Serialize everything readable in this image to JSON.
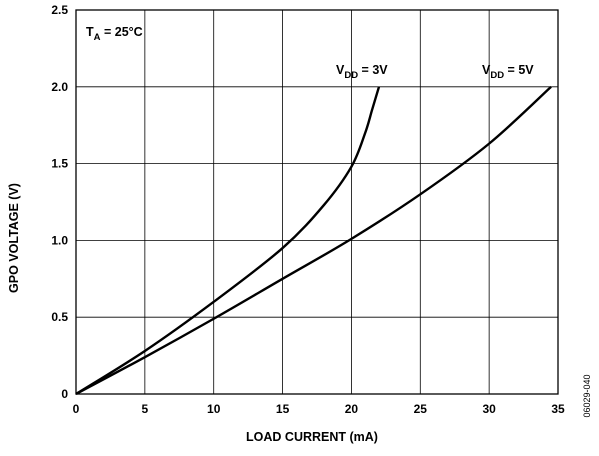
{
  "chart_data": {
    "type": "line",
    "xlabel": "LOAD CURRENT (mA)",
    "ylabel": "GPO VOLTAGE (V)",
    "xlim": [
      0,
      35
    ],
    "ylim": [
      0,
      2.5
    ],
    "xticks": [
      0,
      5,
      10,
      15,
      20,
      25,
      30,
      35
    ],
    "xtick_labels": [
      "0",
      "5",
      "10",
      "15",
      "20",
      "25",
      "30",
      "35"
    ],
    "yticks": [
      0,
      0.5,
      1.0,
      1.5,
      2.0,
      2.5
    ],
    "ytick_labels": [
      "0",
      "0.5",
      "1.0",
      "1.5",
      "2.0",
      "2.5"
    ],
    "grid": true,
    "series": [
      {
        "name": "VDD = 3V",
        "label_main": "V",
        "label_sub": "DD",
        "label_rest": " = 3V",
        "x": [
          0,
          5,
          10,
          15,
          18,
          20,
          21,
          21.5,
          22
        ],
        "y": [
          0,
          0.28,
          0.6,
          0.95,
          1.23,
          1.48,
          1.7,
          1.85,
          2.0
        ]
      },
      {
        "name": "VDD = 5V",
        "label_main": "V",
        "label_sub": "DD",
        "label_rest": " = 5V",
        "x": [
          0,
          5,
          10,
          15,
          20,
          25,
          30,
          34.5
        ],
        "y": [
          0,
          0.24,
          0.49,
          0.75,
          1.01,
          1.3,
          1.63,
          2.0
        ]
      }
    ],
    "annotation": {
      "main": "T",
      "sub": "A",
      "rest": " = 25°C"
    },
    "figure_id": "06029-040"
  }
}
